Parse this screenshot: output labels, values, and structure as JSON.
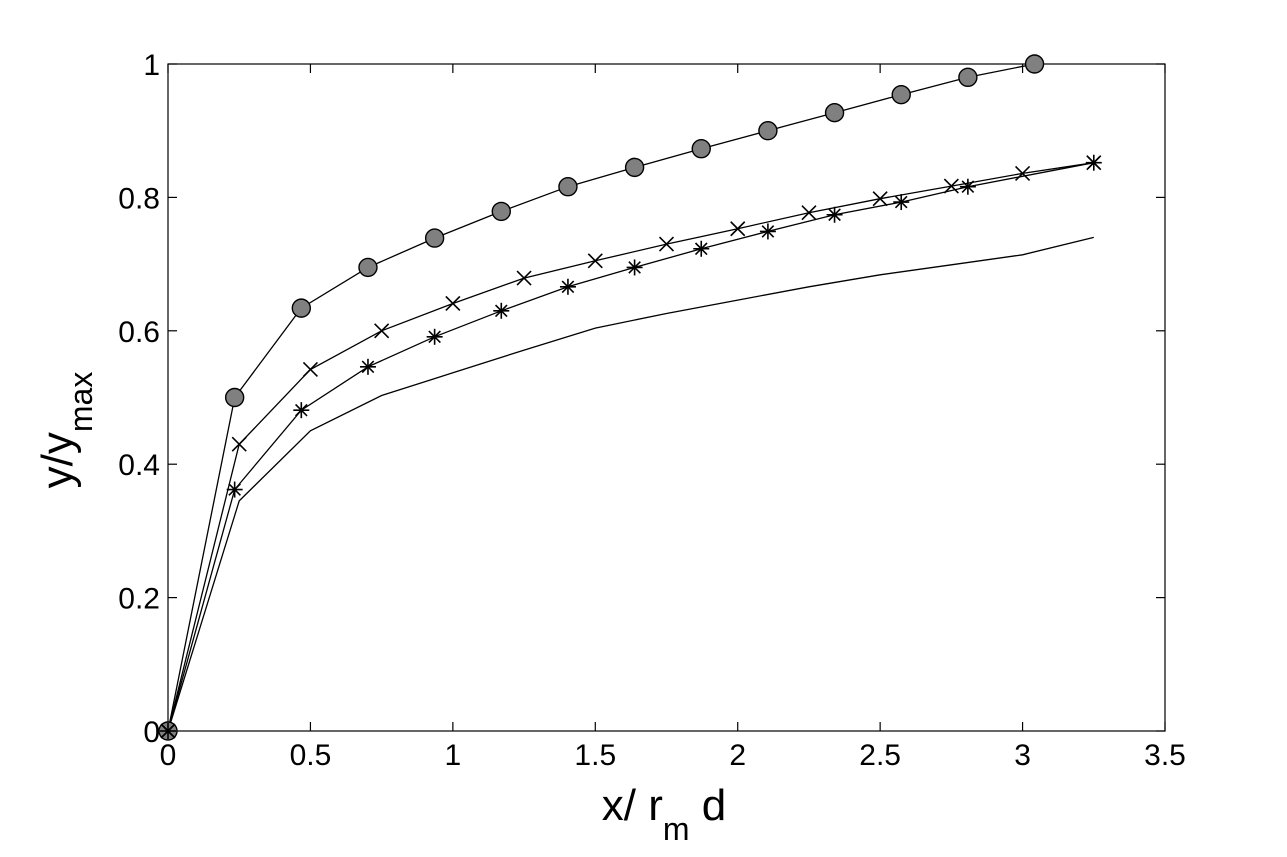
{
  "chart_data": {
    "type": "line",
    "title": "",
    "xlabel_main": "x/ r",
    "xlabel_sub": "m",
    "xlabel_tail": " d",
    "ylabel_main": "y/y",
    "ylabel_sub": "max",
    "xlim": [
      0,
      3.5
    ],
    "ylim": [
      0,
      1
    ],
    "xticks": [
      0,
      0.5,
      1,
      1.5,
      2,
      2.5,
      3,
      3.5
    ],
    "xtick_labels": [
      "0",
      "0.5",
      "1",
      "1.5",
      "2",
      "2.5",
      "3",
      "3.5"
    ],
    "yticks": [
      0,
      0.2,
      0.4,
      0.6,
      0.8,
      1
    ],
    "ytick_labels": [
      "0",
      "0.2",
      "0.4",
      "0.6",
      "0.8",
      "1"
    ],
    "grid": false,
    "legend": false,
    "series": [
      {
        "marker": "circle",
        "color": "#808080",
        "x": [
          0,
          0.234,
          0.468,
          0.702,
          0.936,
          1.17,
          1.404,
          1.638,
          1.872,
          2.106,
          2.34,
          2.574,
          2.808,
          3.042
        ],
        "y": [
          0,
          0.5,
          0.634,
          0.695,
          0.739,
          0.779,
          0.816,
          0.845,
          0.873,
          0.9,
          0.927,
          0.954,
          0.98,
          1.0
        ]
      },
      {
        "marker": "x",
        "color": "#000000",
        "x": [
          0,
          0.25,
          0.5,
          0.75,
          1.0,
          1.25,
          1.5,
          1.75,
          2.0,
          2.25,
          2.5,
          2.75,
          3.0,
          3.25
        ],
        "y": [
          0,
          0.43,
          0.542,
          0.6,
          0.641,
          0.679,
          0.705,
          0.73,
          0.753,
          0.777,
          0.798,
          0.817,
          0.836,
          0.852
        ]
      },
      {
        "marker": "star",
        "color": "#000000",
        "x": [
          0,
          0.234,
          0.468,
          0.702,
          0.936,
          1.17,
          1.404,
          1.638,
          1.872,
          2.106,
          2.34,
          2.574,
          2.808,
          3.25
        ],
        "y": [
          0,
          0.362,
          0.481,
          0.546,
          0.591,
          0.63,
          0.666,
          0.695,
          0.723,
          0.749,
          0.774,
          0.793,
          0.816,
          0.852
        ]
      },
      {
        "marker": "none",
        "color": "#000000",
        "x": [
          0,
          0.25,
          0.5,
          0.75,
          1.0,
          1.25,
          1.5,
          1.75,
          2.0,
          2.25,
          2.5,
          2.75,
          3.0,
          3.25
        ],
        "y": [
          0,
          0.345,
          0.45,
          0.503,
          0.537,
          0.571,
          0.604,
          0.626,
          0.646,
          0.666,
          0.684,
          0.699,
          0.714,
          0.74
        ]
      }
    ]
  }
}
